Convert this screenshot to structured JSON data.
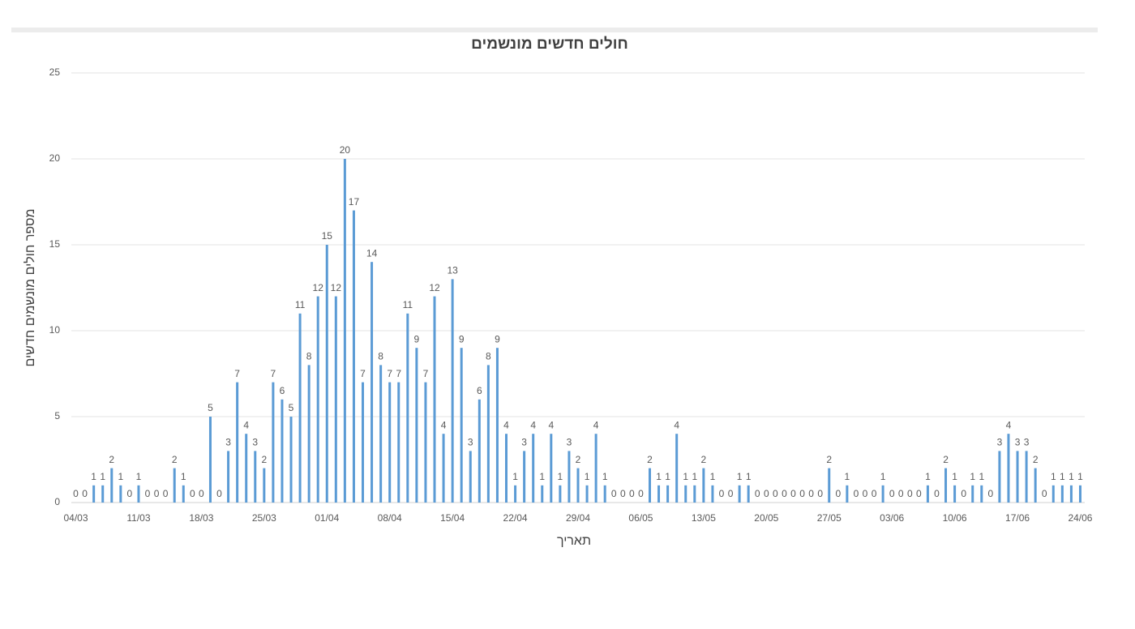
{
  "chart_data": {
    "type": "bar",
    "title": "חולים חדשים מונשמים",
    "x_label": "תאריך",
    "y_label": "מספר חולים מונשמים חדשים",
    "categories": [
      "04/03",
      null,
      null,
      null,
      null,
      null,
      null,
      "11/03",
      null,
      null,
      null,
      null,
      null,
      null,
      "18/03",
      null,
      null,
      null,
      null,
      null,
      null,
      "25/03",
      null,
      null,
      null,
      null,
      null,
      null,
      "01/04",
      null,
      null,
      null,
      null,
      null,
      null,
      "08/04",
      null,
      null,
      null,
      null,
      null,
      null,
      "15/04",
      null,
      null,
      null,
      null,
      null,
      null,
      "22/04",
      null,
      null,
      null,
      null,
      null,
      null,
      "29/04",
      null,
      null,
      null,
      null,
      null,
      null,
      "06/05",
      null,
      null,
      null,
      null,
      null,
      null,
      "13/05",
      null,
      null,
      null,
      null,
      null,
      null,
      "20/05",
      null,
      null,
      null,
      null,
      null,
      null,
      "27/05",
      null,
      null,
      null,
      null,
      null,
      null,
      "03/06",
      null,
      null,
      null,
      null,
      null,
      null,
      "10/06",
      null,
      null,
      null,
      null,
      null,
      null,
      "17/06",
      null,
      null,
      null,
      null,
      null,
      null,
      "24/06"
    ],
    "values": [
      0,
      0,
      1,
      1,
      2,
      1,
      0,
      1,
      0,
      0,
      0,
      2,
      1,
      0,
      0,
      5,
      0,
      3,
      7,
      4,
      3,
      2,
      7,
      6,
      5,
      11,
      8,
      12,
      15,
      12,
      20,
      17,
      7,
      14,
      8,
      7,
      7,
      11,
      9,
      7,
      12,
      4,
      13,
      9,
      3,
      6,
      8,
      9,
      4,
      1,
      3,
      4,
      1,
      4,
      1,
      3,
      2,
      1,
      4,
      1,
      0,
      0,
      0,
      0,
      2,
      1,
      1,
      4,
      1,
      1,
      2,
      1,
      0,
      0,
      1,
      1,
      0,
      0,
      0,
      0,
      0,
      0,
      0,
      0,
      2,
      0,
      1,
      0,
      0,
      0,
      1,
      0,
      0,
      0,
      0,
      1,
      0,
      2,
      1,
      0,
      1,
      1,
      0,
      3,
      4,
      3,
      3,
      2,
      0,
      1,
      1,
      1,
      1
    ],
    "color": "#5b9bd5",
    "ylim": [
      0,
      25
    ],
    "yticks": [
      0,
      5,
      10,
      15,
      20,
      25
    ],
    "grid": true
  }
}
